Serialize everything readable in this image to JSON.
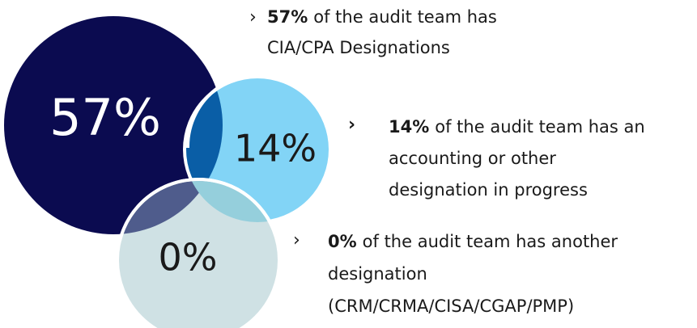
{
  "items": [
    {
      "percent": "57%",
      "lines": [
        "of the audit team has",
        "CIA/CPA Designations"
      ]
    },
    {
      "percent": "14%",
      "lines": [
        "of the audit team has an",
        "accounting or other",
        "designation in progress"
      ]
    },
    {
      "percent": "0%",
      "lines": [
        "of the audit team has another",
        "designation",
        "(CRM/CRMA/CISA/CGAP/PMP)"
      ]
    }
  ]
}
